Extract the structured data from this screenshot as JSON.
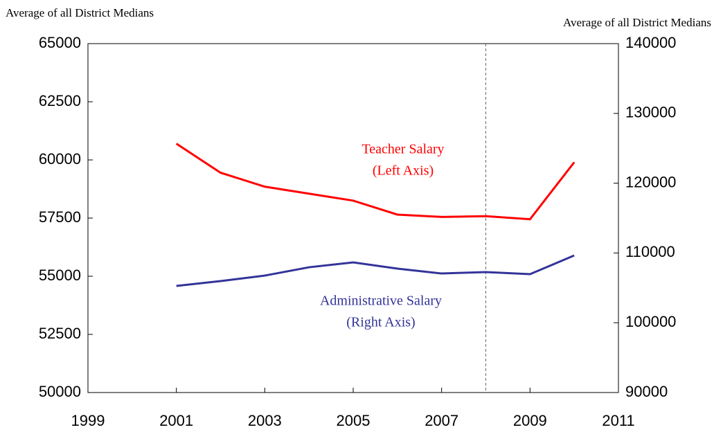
{
  "chart_data": {
    "type": "line",
    "y_label": "Average of all District Medians",
    "y2_label": "Average of all District Medians",
    "x": [
      2001,
      2002,
      2003,
      2004,
      2005,
      2006,
      2007,
      2008,
      2009,
      2010
    ],
    "series": [
      {
        "name": "Teacher Salary",
        "color": "#ff0000",
        "axis": "y",
        "values": [
          60700,
          59450,
          58850,
          58550,
          58250,
          57650,
          57550,
          57580,
          57450,
          59900
        ]
      },
      {
        "name": "Administrative Salary",
        "color": "#333399",
        "axis": "y2",
        "values": [
          105280,
          105970,
          106760,
          107950,
          108650,
          107760,
          107060,
          107260,
          106960,
          109640
        ]
      }
    ],
    "annotations": [
      {
        "lines": [
          "Teacher Salary",
          "(Left Axis)"
        ],
        "color": "#ff0000"
      },
      {
        "lines": [
          "Administrative Salary",
          "(Right Axis)"
        ],
        "color": "#333399"
      }
    ],
    "vline_x": 2008,
    "xlim": [
      1999,
      2011
    ],
    "xticks": [
      1999,
      2001,
      2003,
      2005,
      2007,
      2009,
      2011
    ],
    "ylim": [
      50000,
      65000
    ],
    "yticks": [
      50000,
      52500,
      55000,
      57500,
      60000,
      62500,
      65000
    ],
    "y2lim": [
      90000,
      140000
    ],
    "y2ticks": [
      90000,
      100000,
      110000,
      120000,
      130000,
      140000
    ],
    "grid": false
  }
}
